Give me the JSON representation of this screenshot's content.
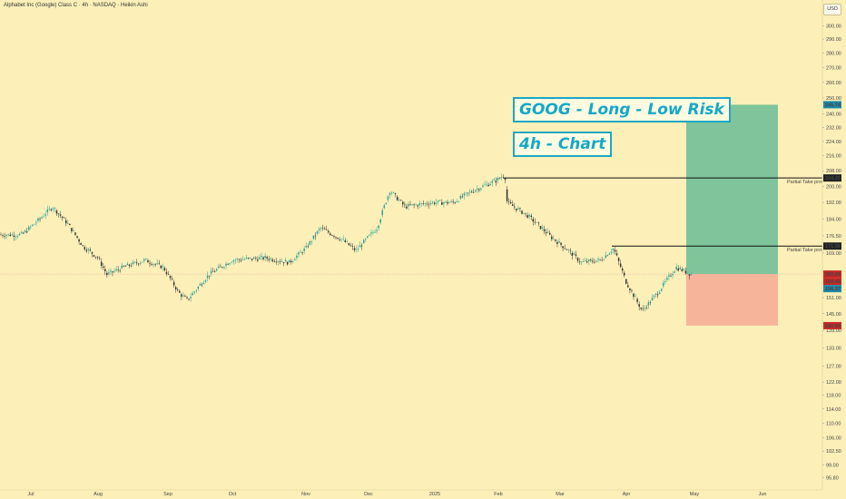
{
  "header": {
    "title": "Alphabet Inc (Google) Class C · 4h · NASDAQ · Heikin Ashi"
  },
  "currency_label": "USD",
  "annotations": {
    "title_box": "GOOG - Long - Low Risk",
    "timeframe_box": "4h - Chart"
  },
  "colors": {
    "background": "#fcefb8",
    "bull": "#26a69a",
    "bear": "#333333",
    "profit_zone": "#7fc49a",
    "loss_zone": "#f6b59a",
    "label_blue": "#1e88a8",
    "label_red": "#c62828",
    "label_black": "#222222"
  },
  "chart_data": {
    "type": "candlestick",
    "y_axis": {
      "scale": "log",
      "range": [
        94,
        315
      ],
      "ticks": [
        "300.00",
        "290.00",
        "280.00",
        "270.00",
        "260.00",
        "250.00",
        "240.00",
        "232.00",
        "224.00",
        "216.00",
        "208.00",
        "200.00",
        "192.00",
        "184.00",
        "176.50",
        "169.00",
        "151.00",
        "145.00",
        "139.00",
        "133.00",
        "127.00",
        "122.00",
        "118.00",
        "114.00",
        "110.00",
        "106.00",
        "102.50",
        "99.00",
        "95.80"
      ]
    },
    "x_axis": {
      "labels": [
        "Jul",
        "Aug",
        "Sep",
        "Oct",
        "Nov",
        "Dec",
        "2025",
        "Feb",
        "Mar",
        "Apr",
        "May",
        "Jun"
      ],
      "range": [
        "Jun 2024",
        "Jun 2025"
      ]
    },
    "price_path": [
      [
        "Jun 27",
        177
      ],
      [
        "Jul 5",
        184
      ],
      [
        "Jul 11",
        190
      ],
      [
        "Jul 18",
        182
      ],
      [
        "Jul 25",
        172
      ],
      [
        "Aug 1",
        167
      ],
      [
        "Aug 5",
        160
      ],
      [
        "Aug 12",
        163
      ],
      [
        "Aug 22",
        166
      ],
      [
        "Aug 30",
        163
      ],
      [
        "Sep 6",
        153
      ],
      [
        "Sep 10",
        150
      ],
      [
        "Sep 20",
        160
      ],
      [
        "Oct 1",
        166
      ],
      [
        "Oct 15",
        167
      ],
      [
        "Oct 25",
        165
      ],
      [
        "Nov 1",
        171
      ],
      [
        "Nov 8",
        180
      ],
      [
        "Nov 18",
        175
      ],
      [
        "Nov 25",
        170
      ],
      [
        "Dec 5",
        180
      ],
      [
        "Dec 11",
        198
      ],
      [
        "Dec 18",
        190
      ],
      [
        "Dec 31",
        192
      ],
      [
        "Jan 10",
        192
      ],
      [
        "Jan 20",
        198
      ],
      [
        "Jan 31",
        203
      ],
      [
        "Feb 4",
        206
      ],
      [
        "Feb 5",
        192
      ],
      [
        "Feb 14",
        186
      ],
      [
        "Feb 25",
        176
      ],
      [
        "Mar 5",
        170
      ],
      [
        "Mar 11",
        165
      ],
      [
        "Mar 20",
        166
      ],
      [
        "Mar 26",
        171
      ],
      [
        "Apr 1",
        157
      ],
      [
        "Apr 8",
        146
      ],
      [
        "Apr 15",
        153
      ],
      [
        "Apr 23",
        163
      ],
      [
        "Apr 30",
        160
      ]
    ],
    "position": {
      "direction": "long",
      "entry": 160.24,
      "stop": 140.69,
      "target": 245.74,
      "take_profits": [
        {
          "label": "Partial Take profit",
          "price": 204.25
        },
        {
          "label": "Partial Take profit",
          "price": 171.98
        }
      ]
    },
    "price_labels": [
      {
        "value": "245.74",
        "color": "label_blue"
      },
      {
        "value": "204.25",
        "color": "label_black"
      },
      {
        "value": "171.98",
        "color": "label_black"
      },
      {
        "value": "160.24",
        "color": "label_red"
      },
      {
        "value": "159.46",
        "color": "label_red"
      },
      {
        "value": "156.37",
        "color": "label_blue"
      },
      {
        "value": "140.69",
        "color": "label_red"
      }
    ],
    "grid": false
  }
}
